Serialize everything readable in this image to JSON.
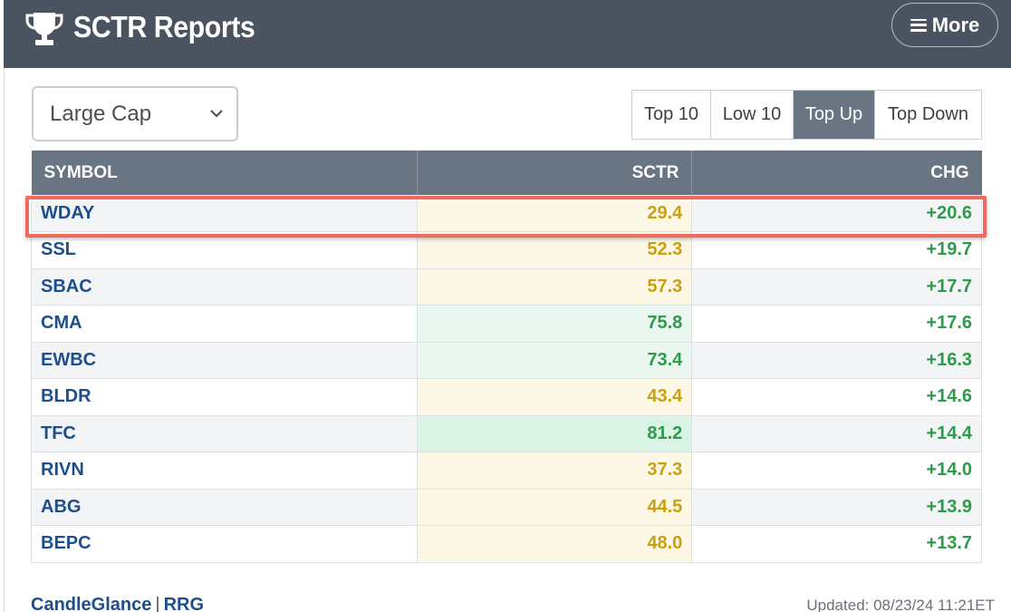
{
  "header": {
    "title": "SCTR Reports",
    "more_label": "More",
    "trophy_icon": "trophy-icon",
    "menu_icon": "hamburger-icon"
  },
  "filter": {
    "selected": "Large Cap"
  },
  "tabs": [
    {
      "label": "Top 10",
      "active": false
    },
    {
      "label": "Low 10",
      "active": false
    },
    {
      "label": "Top Up",
      "active": true
    },
    {
      "label": "Top Down",
      "active": false
    }
  ],
  "table": {
    "columns": [
      "SYMBOL",
      "SCTR",
      "CHG"
    ],
    "rows": [
      {
        "symbol": "WDAY",
        "sctr": "29.4",
        "chg": "+20.6"
      },
      {
        "symbol": "SSL",
        "sctr": "52.3",
        "chg": "+19.7"
      },
      {
        "symbol": "SBAC",
        "sctr": "57.3",
        "chg": "+17.7"
      },
      {
        "symbol": "CMA",
        "sctr": "75.8",
        "chg": "+17.6"
      },
      {
        "symbol": "EWBC",
        "sctr": "73.4",
        "chg": "+16.3"
      },
      {
        "symbol": "BLDR",
        "sctr": "43.4",
        "chg": "+14.6"
      },
      {
        "symbol": "TFC",
        "sctr": "81.2",
        "chg": "+14.4"
      },
      {
        "symbol": "RIVN",
        "sctr": "37.3",
        "chg": "+14.0"
      },
      {
        "symbol": "ABG",
        "sctr": "44.5",
        "chg": "+13.9"
      },
      {
        "symbol": "BEPC",
        "sctr": "48.0",
        "chg": "+13.7"
      }
    ]
  },
  "footer": {
    "link1": "CandleGlance",
    "separator": "|",
    "link2": "RRG",
    "updated": "Updated: 08/23/24 11:21ET"
  },
  "colors": {
    "header_bg": "#4a5461",
    "table_header_bg": "#6a7583",
    "symbol_color": "#1d4f8c",
    "positive_green": "#2e9a4c",
    "sctr_yellow": "#c9a00f",
    "highlight_red": "#f06a5f"
  }
}
